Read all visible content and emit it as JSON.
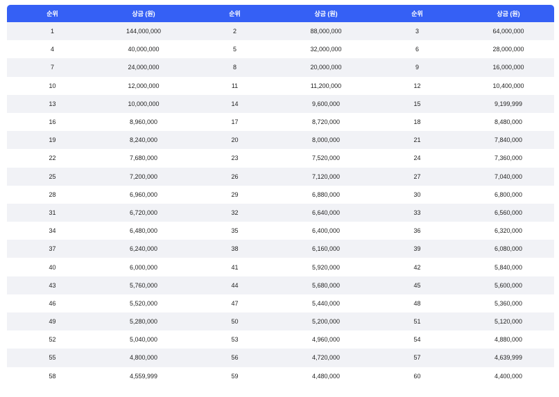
{
  "table": {
    "header": [
      "순위",
      "상금 (원)",
      "순위",
      "상금 (원)",
      "순위",
      "상금 (원)"
    ],
    "rows": [
      [
        "1",
        "144,000,000",
        "2",
        "88,000,000",
        "3",
        "64,000,000"
      ],
      [
        "4",
        "40,000,000",
        "5",
        "32,000,000",
        "6",
        "28,000,000"
      ],
      [
        "7",
        "24,000,000",
        "8",
        "20,000,000",
        "9",
        "16,000,000"
      ],
      [
        "10",
        "12,000,000",
        "11",
        "11,200,000",
        "12",
        "10,400,000"
      ],
      [
        "13",
        "10,000,000",
        "14",
        "9,600,000",
        "15",
        "9,199,999"
      ],
      [
        "16",
        "8,960,000",
        "17",
        "8,720,000",
        "18",
        "8,480,000"
      ],
      [
        "19",
        "8,240,000",
        "20",
        "8,000,000",
        "21",
        "7,840,000"
      ],
      [
        "22",
        "7,680,000",
        "23",
        "7,520,000",
        "24",
        "7,360,000"
      ],
      [
        "25",
        "7,200,000",
        "26",
        "7,120,000",
        "27",
        "7,040,000"
      ],
      [
        "28",
        "6,960,000",
        "29",
        "6,880,000",
        "30",
        "6,800,000"
      ],
      [
        "31",
        "6,720,000",
        "32",
        "6,640,000",
        "33",
        "6,560,000"
      ],
      [
        "34",
        "6,480,000",
        "35",
        "6,400,000",
        "36",
        "6,320,000"
      ],
      [
        "37",
        "6,240,000",
        "38",
        "6,160,000",
        "39",
        "6,080,000"
      ],
      [
        "40",
        "6,000,000",
        "41",
        "5,920,000",
        "42",
        "5,840,000"
      ],
      [
        "43",
        "5,760,000",
        "44",
        "5,680,000",
        "45",
        "5,600,000"
      ],
      [
        "46",
        "5,520,000",
        "47",
        "5,440,000",
        "48",
        "5,360,000"
      ],
      [
        "49",
        "5,280,000",
        "50",
        "5,200,000",
        "51",
        "5,120,000"
      ],
      [
        "52",
        "5,040,000",
        "53",
        "4,960,000",
        "54",
        "4,880,000"
      ],
      [
        "55",
        "4,800,000",
        "56",
        "4,720,000",
        "57",
        "4,639,999"
      ],
      [
        "58",
        "4,559,999",
        "59",
        "4,480,000",
        "60",
        "4,400,000"
      ]
    ]
  },
  "colors": {
    "header_bg": "#3560f5",
    "header_text": "#ffffff",
    "row_stripe": "#f1f2f6",
    "row_plain": "#ffffff",
    "text": "#222222"
  }
}
